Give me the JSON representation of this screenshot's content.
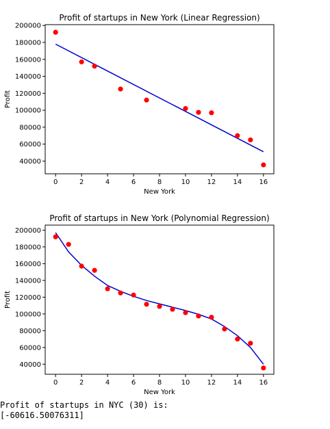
{
  "chart_data": [
    {
      "type": "scatter",
      "title": "Profit of startups in New York (Linear Regression)",
      "xlabel": "New York",
      "ylabel": "Profit",
      "xlim": [
        -0.8,
        16.8
      ],
      "ylim": [
        25000,
        201000
      ],
      "xticks": [
        0,
        2,
        4,
        6,
        8,
        10,
        12,
        14,
        16
      ],
      "yticks": [
        40000,
        60000,
        80000,
        100000,
        120000,
        140000,
        160000,
        180000,
        200000
      ],
      "grid": false,
      "colors": {
        "points": "#ff0000",
        "line": "#0000cc"
      },
      "series": [
        {
          "type": "scatter",
          "x": [
            0,
            2,
            3,
            5,
            7,
            10,
            11,
            12,
            14,
            15,
            16
          ],
          "y": [
            192000,
            157000,
            152000,
            125000,
            112000,
            102000,
            97500,
            97000,
            70000,
            65000,
            35500
          ]
        },
        {
          "type": "line",
          "x": [
            0,
            16
          ],
          "y": [
            178000,
            51000
          ]
        }
      ]
    },
    {
      "type": "scatter",
      "title": "Profit of startups in New York (Polynomial Regression)",
      "xlabel": "New York",
      "ylabel": "Profit",
      "xlim": [
        -0.8,
        16.8
      ],
      "ylim": [
        28000,
        206000
      ],
      "xticks": [
        0,
        2,
        4,
        6,
        8,
        10,
        12,
        14,
        16
      ],
      "yticks": [
        40000,
        60000,
        80000,
        100000,
        120000,
        140000,
        160000,
        180000,
        200000
      ],
      "grid": false,
      "colors": {
        "points": "#ff0000",
        "line": "#0000cc"
      },
      "series": [
        {
          "type": "scatter",
          "x": [
            0,
            1,
            2,
            3,
            4,
            5,
            6,
            7,
            8,
            9,
            10,
            11,
            12,
            13,
            14,
            15,
            16
          ],
          "y": [
            192000,
            183000,
            157000,
            152000,
            130000,
            125000,
            122500,
            111500,
            109000,
            105500,
            101500,
            97500,
            96000,
            82000,
            70000,
            65000,
            35500
          ]
        },
        {
          "type": "line",
          "x": [
            0,
            1,
            2,
            3,
            4,
            5,
            6,
            7,
            8,
            9,
            10,
            11,
            12,
            13,
            14,
            15,
            16
          ],
          "y": [
            197000,
            174000,
            158000,
            145000,
            134000,
            127000,
            121000,
            116000,
            112000,
            108000,
            104000,
            99500,
            94000,
            85000,
            74000,
            60000,
            40000
          ]
        }
      ]
    }
  ],
  "output": {
    "line1": "Profit of startups in NYC (30) is:",
    "line2": "[-60616.50076311]"
  }
}
